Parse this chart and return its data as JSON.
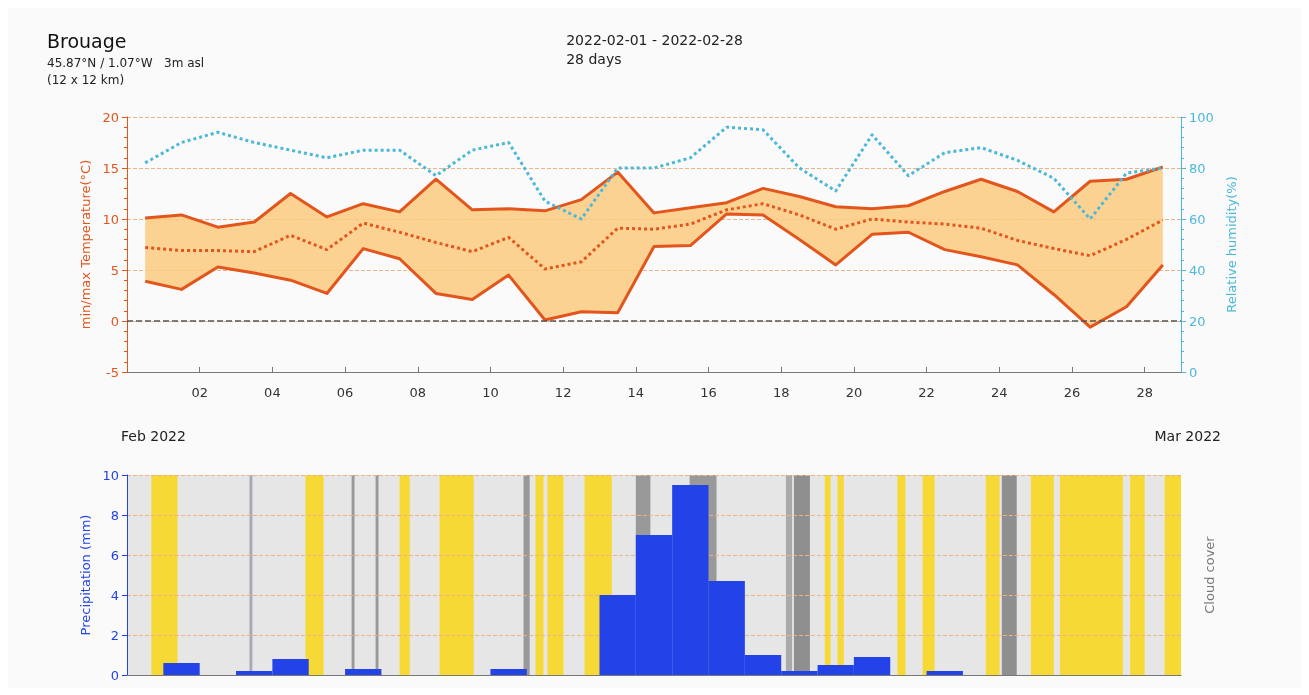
{
  "chart_data": [
    {
      "type": "line",
      "title": "Brouage",
      "subtitle": "45.87°N / 1.07°W   3m asl\n(12 x 12 km)",
      "annotations": [
        "2022-02-01 - 2022-02-28\n28 days",
        "Feb 2022",
        "Mar 2022"
      ],
      "ylabel": "min/max Temperature(°C)",
      "y2label": "Relative humidity(%)",
      "x": [
        1,
        2,
        3,
        4,
        5,
        6,
        7,
        8,
        9,
        10,
        11,
        12,
        13,
        14,
        15,
        16,
        17,
        18,
        19,
        20,
        21,
        22,
        23,
        24,
        25,
        26,
        27,
        28,
        29
      ],
      "series": [
        {
          "color": "#e2561d",
          "values": [
            10.1,
            10.4,
            9.2,
            9.7,
            12.5,
            10.2,
            11.5,
            10.7,
            13.9,
            10.9,
            11.0,
            10.8,
            11.9,
            14.6,
            10.6,
            11.1,
            11.6,
            13.0,
            12.2,
            11.2,
            11.0,
            11.3,
            12.7,
            13.9,
            12.7,
            10.7,
            13.7,
            13.9,
            15.1
          ]
        },
        {
          "color": "#e2561d",
          "values": [
            3.9,
            3.1,
            5.3,
            4.7,
            4.0,
            2.7,
            7.1,
            6.1,
            2.7,
            2.1,
            4.5,
            0.1,
            0.9,
            0.8,
            7.3,
            7.4,
            10.5,
            10.4,
            8.0,
            5.5,
            8.5,
            8.7,
            7.0,
            6.3,
            5.5,
            2.6,
            -0.6,
            1.4,
            5.5
          ]
        },
        {
          "color": "#e2561d",
          "line_style": "dotted",
          "values": [
            7.2,
            6.9,
            6.9,
            6.8,
            8.4,
            7.0,
            9.6,
            8.7,
            7.7,
            6.8,
            8.2,
            5.1,
            5.8,
            9.1,
            9.0,
            9.5,
            10.9,
            11.5,
            10.4,
            9.0,
            10.0,
            9.7,
            9.5,
            9.1,
            7.9,
            7.1,
            6.4,
            8.0,
            9.9
          ],
          "lower": [
            3.9,
            3.1,
            5.3,
            4.7,
            4.0,
            2.7,
            7.1,
            6.1,
            2.7,
            2.1,
            4.5,
            0.1,
            0.9,
            0.8,
            7.3,
            7.4,
            10.5,
            10.4,
            8.0,
            5.5,
            8.5,
            8.7,
            7.0,
            6.3,
            5.5,
            2.6,
            -0.6,
            1.4,
            5.5
          ],
          "upper": [
            10.1,
            10.4,
            9.2,
            9.7,
            12.5,
            10.2,
            11.5,
            10.7,
            13.9,
            10.9,
            11.0,
            10.8,
            11.9,
            14.6,
            10.6,
            11.1,
            11.6,
            13.0,
            12.2,
            11.2,
            11.0,
            11.3,
            12.7,
            13.9,
            12.7,
            10.7,
            13.7,
            13.9,
            15.1
          ]
        },
        {
          "color": "#4cb8d8",
          "line_style": "dotted",
          "axis": "y2",
          "values": [
            82,
            90,
            94,
            90,
            87,
            84,
            87,
            87,
            77,
            87,
            90,
            67,
            60,
            80,
            80,
            84,
            96,
            95,
            80,
            71,
            93,
            77,
            86,
            88,
            83,
            76,
            60,
            78,
            80
          ]
        }
      ],
      "xlim": [
        0.5,
        29.5
      ],
      "xticks": [
        {
          "value": 2.5,
          "label": "02"
        },
        {
          "value": 4.5,
          "label": "04"
        },
        {
          "value": 6.5,
          "label": "06"
        },
        {
          "value": 8.5,
          "label": "08"
        },
        {
          "value": 10.5,
          "label": "10"
        },
        {
          "value": 12.5,
          "label": "12"
        },
        {
          "value": 14.5,
          "label": "14"
        },
        {
          "value": 16.5,
          "label": "16"
        },
        {
          "value": 18.5,
          "label": "18"
        },
        {
          "value": 20.5,
          "label": "20"
        },
        {
          "value": 22.5,
          "label": "22"
        },
        {
          "value": 24.5,
          "label": "24"
        },
        {
          "value": 26.5,
          "label": "26"
        },
        {
          "value": 28.5,
          "label": "28"
        }
      ],
      "ylim": [
        -5,
        20
      ],
      "yticks": [
        -5,
        0,
        5,
        10,
        15,
        20
      ],
      "y2lim": [
        0,
        100
      ],
      "y2ticks": [
        0,
        20,
        40,
        60,
        80,
        100
      ],
      "ref_lines": [
        {
          "axis": "y",
          "value": 0,
          "color": "#555555",
          "line_style": "dashed"
        }
      ],
      "grid": "y",
      "marker": "none"
    },
    {
      "type": "bar",
      "ylabel": "Precipitation (mm)",
      "y2label": "Cloud cover",
      "x": [
        1,
        2,
        3,
        4,
        5,
        6,
        7,
        8,
        9,
        10,
        11,
        12,
        13,
        14,
        15,
        16,
        17,
        18,
        19,
        20,
        21,
        22,
        23,
        24,
        25,
        26,
        27,
        28,
        29
      ],
      "values": [
        0,
        0.6,
        0,
        0.2,
        0.8,
        0,
        0.3,
        0,
        0,
        0,
        0.3,
        0,
        0,
        4.0,
        7.0,
        9.5,
        4.7,
        1.0,
        0.2,
        0.5,
        0.9,
        0,
        0.2,
        0,
        0,
        0,
        0,
        0,
        0
      ],
      "color": "#2342e8",
      "xlim": [
        0.5,
        29.5
      ],
      "ylim": [
        0,
        10
      ],
      "yticks": [
        0,
        2,
        4,
        6,
        8,
        10
      ],
      "bands": [
        {
          "axis": "x",
          "from": 0.5,
          "to": 29.5,
          "color": "#e6e6e6"
        },
        {
          "axis": "x",
          "from": 1.17,
          "to": 1.89,
          "color": "#f7d936"
        },
        {
          "axis": "x",
          "from": 5.41,
          "to": 5.91,
          "color": "#f7d936"
        },
        {
          "axis": "x",
          "from": 8.0,
          "to": 8.28,
          "color": "#f7d936"
        },
        {
          "axis": "x",
          "from": 9.1,
          "to": 10.04,
          "color": "#f7d936"
        },
        {
          "axis": "x",
          "from": 11.74,
          "to": 11.96,
          "color": "#f7d936"
        },
        {
          "axis": "x",
          "from": 12.07,
          "to": 12.51,
          "color": "#f7d936"
        },
        {
          "axis": "x",
          "from": 13.09,
          "to": 13.84,
          "color": "#f7d936"
        },
        {
          "axis": "x",
          "from": 19.7,
          "to": 19.86,
          "color": "#f7d936"
        },
        {
          "axis": "x",
          "from": 20.05,
          "to": 20.22,
          "color": "#f7d936"
        },
        {
          "axis": "x",
          "from": 21.7,
          "to": 21.92,
          "color": "#f7d936"
        },
        {
          "axis": "x",
          "from": 22.39,
          "to": 22.72,
          "color": "#f7d936"
        },
        {
          "axis": "x",
          "from": 24.13,
          "to": 24.51,
          "color": "#f7d936"
        },
        {
          "axis": "x",
          "from": 25.37,
          "to": 26.0,
          "color": "#f7d936"
        },
        {
          "axis": "x",
          "from": 26.17,
          "to": 27.9,
          "color": "#f7d936"
        },
        {
          "axis": "x",
          "from": 28.1,
          "to": 28.5,
          "color": "#f7d936"
        },
        {
          "axis": "x",
          "from": 29.05,
          "to": 29.5,
          "color": "#f7d936"
        },
        {
          "axis": "x",
          "from": 3.87,
          "to": 3.95,
          "color": "#a8a8b8"
        },
        {
          "axis": "x",
          "from": 6.68,
          "to": 6.76,
          "color": "#999999"
        },
        {
          "axis": "x",
          "from": 7.34,
          "to": 7.42,
          "color": "#999999"
        },
        {
          "axis": "x",
          "from": 11.41,
          "to": 11.58,
          "color": "#999999"
        },
        {
          "axis": "x",
          "from": 14.5,
          "to": 14.9,
          "color": "#999999"
        },
        {
          "axis": "x",
          "from": 15.98,
          "to": 16.72,
          "color": "#999999"
        },
        {
          "axis": "x",
          "from": 18.63,
          "to": 18.8,
          "color": "#aaaaaa"
        },
        {
          "axis": "x",
          "from": 18.85,
          "to": 19.29,
          "color": "#8f8f8f"
        },
        {
          "axis": "x",
          "from": 24.57,
          "to": 24.98,
          "color": "#8f8f8f"
        }
      ],
      "grid": "y",
      "tick_labels": "y"
    }
  ]
}
